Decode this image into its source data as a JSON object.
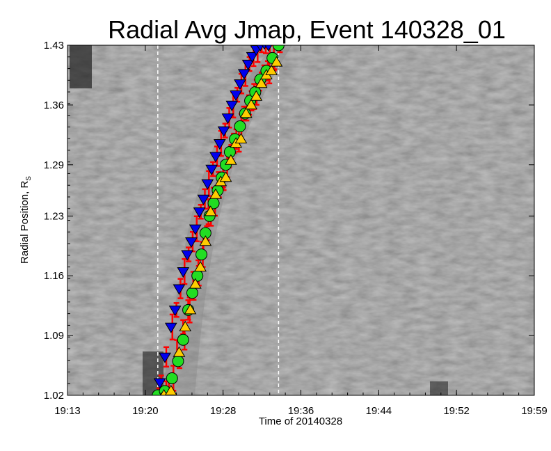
{
  "chart_data": {
    "type": "scatter",
    "title": "Radial Avg Jmap, Event 140328_01",
    "xlabel": "Time of 20140328",
    "ylabel_main": "Radial Position, R",
    "ylabel_sub": "S",
    "x_tick_labels": [
      "19:13",
      "19:20",
      "19:28",
      "19:36",
      "19:44",
      "19:52",
      "19:59"
    ],
    "x_tick_minutes": [
      0,
      7.67,
      15.33,
      23.0,
      30.67,
      38.33,
      46.0
    ],
    "y_tick_labels": [
      "1.02",
      "1.09",
      "1.16",
      "1.23",
      "1.29",
      "1.36",
      "1.43"
    ],
    "y_tick_values": [
      1.02,
      1.09,
      1.16,
      1.23,
      1.29,
      1.36,
      1.43
    ],
    "xlim_minutes": [
      0,
      46
    ],
    "ylim": [
      1.02,
      1.43
    ],
    "background": "grayscale jmap image",
    "vertical_dashed_lines_minutes": [
      8.9,
      20.8
    ],
    "series": [
      {
        "marker": "triangle-down",
        "color": "#0000ee",
        "x_minutes": [
          9.1,
          9.6,
          10.2,
          10.6,
          11.0,
          11.4,
          11.8,
          12.2,
          12.6,
          13.0,
          13.4,
          13.8,
          14.2,
          14.6,
          15.0,
          15.4,
          15.8,
          16.2,
          16.6,
          17.0,
          17.4,
          17.8,
          18.2,
          18.6,
          19.0,
          19.4,
          19.8
        ],
        "values": [
          1.035,
          1.065,
          1.1,
          1.12,
          1.145,
          1.165,
          1.185,
          1.2,
          1.215,
          1.235,
          1.25,
          1.268,
          1.285,
          1.3,
          1.315,
          1.33,
          1.345,
          1.36,
          1.372,
          1.385,
          1.397,
          1.408,
          1.417,
          1.425,
          1.43,
          1.432,
          1.43
        ]
      },
      {
        "marker": "circle",
        "color": "#22dd22",
        "x_minutes": [
          8.9,
          9.6,
          10.3,
          10.9,
          11.4,
          11.9,
          12.3,
          12.8,
          13.2,
          13.6,
          14.0,
          14.4,
          14.8,
          15.2,
          15.6,
          16.0,
          16.5,
          17.0,
          17.5,
          18.0,
          18.5,
          19.0,
          19.6,
          20.2,
          20.8
        ],
        "values": [
          1.02,
          1.025,
          1.04,
          1.06,
          1.085,
          1.12,
          1.14,
          1.16,
          1.185,
          1.21,
          1.23,
          1.245,
          1.26,
          1.275,
          1.29,
          1.305,
          1.32,
          1.335,
          1.35,
          1.365,
          1.375,
          1.39,
          1.4,
          1.415,
          1.43
        ]
      },
      {
        "marker": "triangle-up",
        "color": "#ffcc00",
        "x_minutes": [
          9.5,
          10.2,
          11.0,
          11.6,
          12.1,
          12.6,
          13.1,
          13.6,
          14.1,
          14.6,
          15.1,
          15.6,
          16.1,
          16.6,
          17.1,
          17.6,
          18.1,
          18.6,
          19.1,
          19.6,
          20.1,
          20.6
        ],
        "values": [
          1.02,
          1.025,
          1.07,
          1.1,
          1.12,
          1.15,
          1.17,
          1.2,
          1.235,
          1.255,
          1.27,
          1.275,
          1.295,
          1.315,
          1.32,
          1.35,
          1.36,
          1.37,
          1.385,
          1.395,
          1.4,
          1.41
        ]
      }
    ],
    "error_bar_color": "#ff0000"
  }
}
